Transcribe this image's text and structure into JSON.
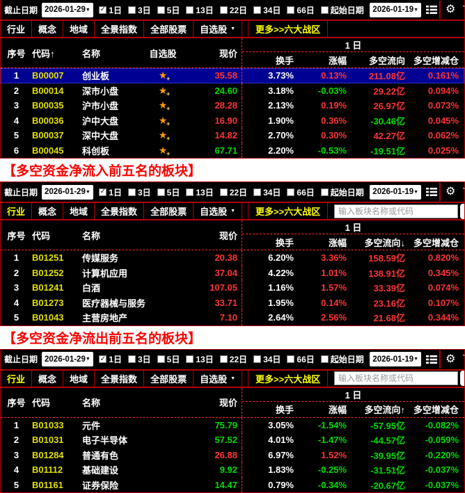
{
  "colors": {
    "up": "#ff3434",
    "down": "#00dd00",
    "code": "#e0e000",
    "selected_row_bg": "#000092",
    "tab_selected": "#ffff00",
    "heading_red": "#ff0000",
    "star_orange": "#ff9900",
    "border_red": "#b40000",
    "dash_red": "#ff2a2a"
  },
  "icons": {
    "caret_down": "▼",
    "check": "✓",
    "star": "★",
    "star_badge": "+",
    "gear": "⚙"
  },
  "toolbar": {
    "end_date_label": "截止日期",
    "end_date_value": "2026-01-29",
    "periods": [
      {
        "label": "1日",
        "checked": true
      },
      {
        "label": "3日",
        "checked": false
      },
      {
        "label": "5日",
        "checked": false
      },
      {
        "label": "13日",
        "checked": false
      },
      {
        "label": "22日",
        "checked": false
      },
      {
        "label": "34日",
        "checked": false
      },
      {
        "label": "66日",
        "checked": false
      }
    ],
    "start_date_label": "起始日期",
    "start_date_checked": false,
    "start_date_value": "2026-01-19"
  },
  "tab_bar": {
    "tabs": [
      "行业",
      "概念",
      "地域",
      "全景指数",
      "全部股票",
      "自选股"
    ],
    "more_link": "更多>>六大战区",
    "search_placeholder": "输入板块名称或代码"
  },
  "group_header": "1 日",
  "flow_unit": "亿",
  "headings": {
    "inflow": "【多空资金净流入前五名的板块】",
    "outflow": "【多空资金净流出前五名的板块】"
  },
  "panels": [
    {
      "name": "sector-overview",
      "industry_tab_selected": false,
      "show_search": false,
      "show_star_column": true,
      "columns_left": [
        "序号",
        "代码↑",
        "名称",
        "自选股",
        "现价"
      ],
      "columns_right": [
        "换手",
        "涨幅",
        "多空流向",
        "多空增减仓"
      ],
      "rows": [
        {
          "seq": "1",
          "code": "B00007",
          "name": "创业板",
          "price": "35.58",
          "price_dir": "up",
          "turnover": "3.73%",
          "change": "0.13%",
          "change_dir": "up",
          "flow": "211.08",
          "flow_dir": "up",
          "delta": "0.161%",
          "delta_dir": "up",
          "selected": true
        },
        {
          "seq": "2",
          "code": "B00014",
          "name": "深市小盘",
          "price": "24.60",
          "price_dir": "down",
          "turnover": "3.18%",
          "change": "-0.03%",
          "change_dir": "down",
          "flow": "29.22",
          "flow_dir": "up",
          "delta": "0.094%",
          "delta_dir": "up",
          "selected": false
        },
        {
          "seq": "3",
          "code": "B00035",
          "name": "沪市小盘",
          "price": "28.28",
          "price_dir": "up",
          "turnover": "2.13%",
          "change": "0.19%",
          "change_dir": "up",
          "flow": "26.97",
          "flow_dir": "up",
          "delta": "0.073%",
          "delta_dir": "up",
          "selected": false
        },
        {
          "seq": "4",
          "code": "B00036",
          "name": "沪中大盘",
          "price": "16.90",
          "price_dir": "up",
          "turnover": "1.90%",
          "change": "0.36%",
          "change_dir": "up",
          "flow": "-30.46",
          "flow_dir": "down",
          "delta": "0.045%",
          "delta_dir": "up",
          "selected": false
        },
        {
          "seq": "5",
          "code": "B00037",
          "name": "深中大盘",
          "price": "14.82",
          "price_dir": "up",
          "turnover": "2.70%",
          "change": "0.30%",
          "change_dir": "up",
          "flow": "42.27",
          "flow_dir": "up",
          "delta": "0.062%",
          "delta_dir": "up",
          "selected": false
        },
        {
          "seq": "6",
          "code": "B00045",
          "name": "科创板",
          "price": "67.71",
          "price_dir": "down",
          "turnover": "2.20%",
          "change": "-0.53%",
          "change_dir": "down",
          "flow": "-19.51",
          "flow_dir": "down",
          "delta": "0.025%",
          "delta_dir": "up",
          "selected": false
        }
      ]
    },
    {
      "name": "top-inflow-sectors",
      "industry_tab_selected": true,
      "show_search": true,
      "show_star_column": false,
      "columns_left": [
        "序号",
        "代码",
        "名称",
        "现价"
      ],
      "columns_right": [
        "换手",
        "涨幅",
        "多空流向↓",
        "多空增减仓"
      ],
      "rows": [
        {
          "seq": "1",
          "code": "B01251",
          "name": "传媒服务",
          "price": "20.38",
          "price_dir": "up",
          "turnover": "6.20%",
          "change": "3.36%",
          "change_dir": "up",
          "flow": "158.59",
          "flow_dir": "up",
          "delta": "0.820%",
          "delta_dir": "up",
          "selected": false
        },
        {
          "seq": "2",
          "code": "B01252",
          "name": "计算机应用",
          "price": "37.04",
          "price_dir": "up",
          "turnover": "4.22%",
          "change": "1.01%",
          "change_dir": "up",
          "flow": "138.91",
          "flow_dir": "up",
          "delta": "0.345%",
          "delta_dir": "up",
          "selected": false
        },
        {
          "seq": "3",
          "code": "B01241",
          "name": "白酒",
          "price": "107.05",
          "price_dir": "up",
          "turnover": "1.16%",
          "change": "1.57%",
          "change_dir": "up",
          "flow": "33.39",
          "flow_dir": "up",
          "delta": "0.074%",
          "delta_dir": "up",
          "selected": false
        },
        {
          "seq": "4",
          "code": "B01273",
          "name": "医疗器械与服务",
          "price": "33.71",
          "price_dir": "up",
          "turnover": "1.95%",
          "change": "0.14%",
          "change_dir": "up",
          "flow": "23.16",
          "flow_dir": "up",
          "delta": "0.107%",
          "delta_dir": "up",
          "selected": false
        },
        {
          "seq": "5",
          "code": "B01043",
          "name": "主营房地产",
          "price": "7.10",
          "price_dir": "up",
          "turnover": "2.64%",
          "change": "2.56%",
          "change_dir": "up",
          "flow": "21.68",
          "flow_dir": "up",
          "delta": "0.344%",
          "delta_dir": "up",
          "selected": false
        }
      ]
    },
    {
      "name": "top-outflow-sectors",
      "industry_tab_selected": true,
      "show_search": true,
      "show_star_column": false,
      "columns_left": [
        "序号",
        "代码",
        "名称",
        "现价"
      ],
      "columns_right": [
        "换手",
        "涨幅",
        "多空流向↑",
        "多空增减仓"
      ],
      "rows": [
        {
          "seq": "1",
          "code": "B01033",
          "name": "元件",
          "price": "75.79",
          "price_dir": "down",
          "turnover": "3.05%",
          "change": "-1.54%",
          "change_dir": "down",
          "flow": "-57.95",
          "flow_dir": "down",
          "delta": "-0.082%",
          "delta_dir": "down",
          "selected": false
        },
        {
          "seq": "2",
          "code": "B01031",
          "name": "电子半导体",
          "price": "57.52",
          "price_dir": "down",
          "turnover": "4.01%",
          "change": "-1.47%",
          "change_dir": "down",
          "flow": "-44.57",
          "flow_dir": "down",
          "delta": "-0.059%",
          "delta_dir": "down",
          "selected": false
        },
        {
          "seq": "3",
          "code": "B01284",
          "name": "普通有色",
          "price": "26.88",
          "price_dir": "up",
          "turnover": "6.97%",
          "change": "1.52%",
          "change_dir": "up",
          "flow": "-39.95",
          "flow_dir": "down",
          "delta": "-0.220%",
          "delta_dir": "down",
          "selected": false
        },
        {
          "seq": "4",
          "code": "B01112",
          "name": "基础建设",
          "price": "9.92",
          "price_dir": "down",
          "turnover": "1.83%",
          "change": "-0.25%",
          "change_dir": "down",
          "flow": "-31.51",
          "flow_dir": "down",
          "delta": "-0.037%",
          "delta_dir": "down",
          "selected": false
        },
        {
          "seq": "5",
          "code": "B01161",
          "name": "证券保险",
          "price": "14.47",
          "price_dir": "down",
          "turnover": "0.79%",
          "change": "-0.34%",
          "change_dir": "down",
          "flow": "-20.67",
          "flow_dir": "down",
          "delta": "-0.037%",
          "delta_dir": "down",
          "selected": false
        }
      ]
    }
  ]
}
